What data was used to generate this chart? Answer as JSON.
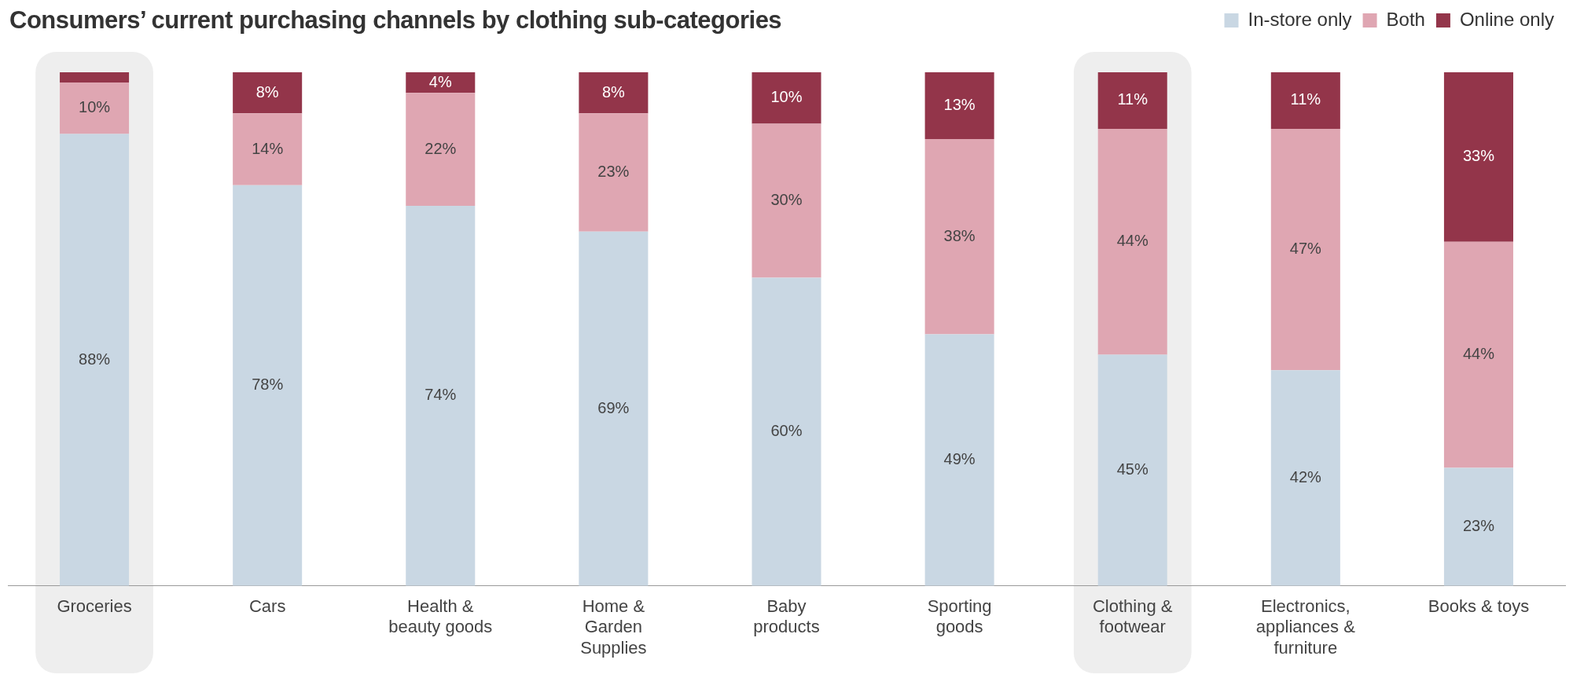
{
  "chart_data": {
    "type": "bar",
    "title": "Consumers’ current purchasing channels by clothing sub-categories",
    "categories": [
      "Groceries",
      "Cars",
      "Health & beauty goods",
      "Home & Garden Supplies",
      "Baby products",
      "Sporting goods",
      "Clothing & footwear",
      "Electronics, appliances & furniture",
      "Books & toys"
    ],
    "stacked": true,
    "ylim": [
      0,
      100
    ],
    "legend": "top right",
    "grid": false,
    "tick_labels": "x",
    "series": [
      {
        "name": "In-store only",
        "color": "#c9d7e3",
        "values": [
          88,
          78,
          74,
          69,
          60,
          49,
          45,
          42,
          23
        ],
        "value_labels": [
          "88%",
          "78%",
          "74%",
          "69%",
          "60%",
          "49%",
          "45%",
          "42%",
          "23%"
        ]
      },
      {
        "name": "Both",
        "color": "#dfa6b2",
        "values": [
          10,
          14,
          22,
          23,
          30,
          38,
          44,
          47,
          44
        ],
        "value_labels": [
          "10%",
          "14%",
          "22%",
          "23%",
          "30%",
          "38%",
          "44%",
          "47%",
          "44%"
        ]
      },
      {
        "name": "Online only",
        "color": "#93354a",
        "values": [
          2,
          8,
          4,
          8,
          10,
          13,
          11,
          11,
          33
        ],
        "value_labels": [
          null,
          "8%",
          "4%",
          "8%",
          "10%",
          "13%",
          "11%",
          "11%",
          "33%"
        ]
      }
    ],
    "bands": [
      {
        "axis": "x",
        "from": "Groceries",
        "to": "Groceries",
        "color": "#eeeeee"
      },
      {
        "axis": "x",
        "from": "Clothing & footwear",
        "to": "Clothing & footwear",
        "color": "#eeeeee"
      }
    ]
  }
}
